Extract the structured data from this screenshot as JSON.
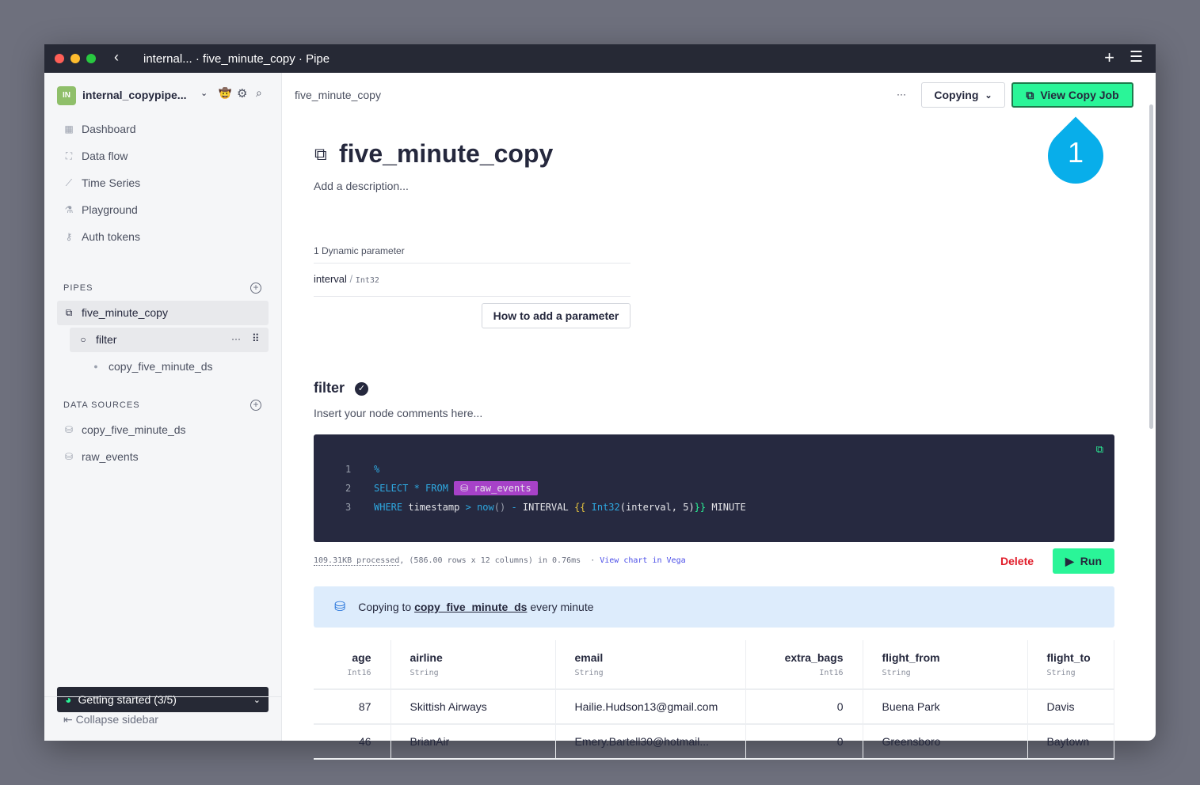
{
  "window": {
    "title": "internal... · five_minute_copy · Pipe"
  },
  "sidebar": {
    "workspace_initials": "IN",
    "workspace_name": "internal_copypipe...",
    "nav": [
      {
        "label": "Dashboard",
        "icon": "grid-icon"
      },
      {
        "label": "Data flow",
        "icon": "hierarchy-icon"
      },
      {
        "label": "Time Series",
        "icon": "chart-icon"
      },
      {
        "label": "Playground",
        "icon": "flask-icon"
      },
      {
        "label": "Auth tokens",
        "icon": "key-icon"
      }
    ],
    "pipes_title": "PIPES",
    "pipe": "five_minute_copy",
    "node": "filter",
    "copy_target": "copy_five_minute_ds",
    "datasources_title": "DATA SOURCES",
    "datasources": [
      "copy_five_minute_ds",
      "raw_events"
    ],
    "getting_started": "Getting started (3/5)",
    "collapse": "Collapse sidebar"
  },
  "header": {
    "breadcrumb": "five_minute_copy",
    "more": "···",
    "copying_label": "Copying",
    "view_copy_job": "View Copy Job",
    "step_badge": "1"
  },
  "pipe": {
    "title": "five_minute_copy",
    "description": "Add a description...",
    "params_title": "1 Dynamic parameter",
    "param_name": "interval",
    "param_type": "Int32",
    "how_to": "How to add a parameter"
  },
  "node": {
    "name": "filter",
    "comment": "Insert your node comments here...",
    "code_lines": [
      "1",
      "2",
      "3"
    ],
    "stats": "109.31KB processed",
    "stats_rest": ", (586.00 rows x 12 columns) in 0.76ms  · ",
    "vega": "View chart in Vega",
    "delete": "Delete",
    "run": "Run",
    "copy_info_pre": "Copying to ",
    "copy_info_target": "copy_five_minute_ds",
    "copy_info_post": " every minute"
  },
  "table": {
    "columns": [
      {
        "name": "age",
        "type": "Int16"
      },
      {
        "name": "airline",
        "type": "String"
      },
      {
        "name": "email",
        "type": "String"
      },
      {
        "name": "extra_bags",
        "type": "Int16"
      },
      {
        "name": "flight_from",
        "type": "String"
      },
      {
        "name": "flight_to",
        "type": "String"
      }
    ],
    "rows": [
      [
        "87",
        "Skittish Airways",
        "Hailie.Hudson13@gmail.com",
        "0",
        "Buena Park",
        "Davis"
      ],
      [
        "46",
        "BrianAir",
        "Emery.Bartell30@hotmail...",
        "0",
        "Greensboro",
        "Baytown"
      ]
    ]
  },
  "colors": {
    "accent": "#2af598",
    "badge": "#08aeea",
    "datasource_tag": "#a742c8",
    "delete": "#e11d2a"
  }
}
